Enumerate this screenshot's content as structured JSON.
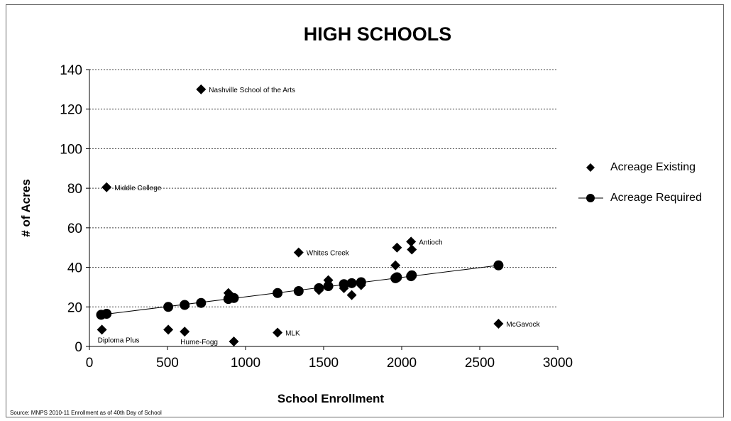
{
  "chart_data": {
    "type": "scatter",
    "title": "HIGH SCHOOLS",
    "xlabel": "School Enrollment",
    "ylabel": "# of Acres",
    "xlim": [
      0,
      3000
    ],
    "ylim": [
      0,
      140
    ],
    "x_ticks": [
      0,
      500,
      1000,
      1500,
      2000,
      2500,
      3000
    ],
    "y_ticks": [
      0,
      20,
      40,
      60,
      80,
      100,
      120,
      140
    ],
    "grid": "horizontal dashed",
    "legend_position": "right",
    "source": "Source: MNPS 2010-11 Enrollment as of 40th Day of School",
    "series": [
      {
        "name": "Acreage Existing",
        "marker": "diamond",
        "color": "#000000",
        "points": [
          {
            "x": 715,
            "y": 130,
            "label": "Nashville School of the Arts"
          },
          {
            "x": 110,
            "y": 80.5,
            "label": "Middle College"
          },
          {
            "x": 1340,
            "y": 47.5,
            "label": "Whites Creek"
          },
          {
            "x": 2060,
            "y": 53,
            "label": "Antioch"
          },
          {
            "x": 1970,
            "y": 50,
            "label": ""
          },
          {
            "x": 2065,
            "y": 49,
            "label": ""
          },
          {
            "x": 1960,
            "y": 41,
            "label": ""
          },
          {
            "x": 1530,
            "y": 33.5,
            "label": ""
          },
          {
            "x": 1740,
            "y": 31,
            "label": ""
          },
          {
            "x": 1630,
            "y": 29.5,
            "label": ""
          },
          {
            "x": 1470,
            "y": 28.5,
            "label": ""
          },
          {
            "x": 1680,
            "y": 26,
            "label": ""
          },
          {
            "x": 890,
            "y": 27,
            "label": ""
          },
          {
            "x": 2620,
            "y": 11.5,
            "label": "McGavock"
          },
          {
            "x": 80,
            "y": 8.5,
            "label": "Diploma Plus"
          },
          {
            "x": 505,
            "y": 8.5,
            "label": ""
          },
          {
            "x": 610,
            "y": 7.5,
            "label": "Hume-Fogg"
          },
          {
            "x": 1205,
            "y": 7,
            "label": "MLK"
          },
          {
            "x": 925,
            "y": 2.5,
            "label": ""
          }
        ]
      },
      {
        "name": "Acreage Required",
        "marker": "circle",
        "color": "#000000",
        "line": true,
        "points": [
          {
            "x": 75,
            "y": 16
          },
          {
            "x": 110,
            "y": 16.5
          },
          {
            "x": 505,
            "y": 20
          },
          {
            "x": 610,
            "y": 21
          },
          {
            "x": 715,
            "y": 22
          },
          {
            "x": 890,
            "y": 24
          },
          {
            "x": 925,
            "y": 24.5
          },
          {
            "x": 1205,
            "y": 27
          },
          {
            "x": 1340,
            "y": 28
          },
          {
            "x": 1470,
            "y": 29.5
          },
          {
            "x": 1530,
            "y": 30.5
          },
          {
            "x": 1630,
            "y": 31.5
          },
          {
            "x": 1680,
            "y": 32
          },
          {
            "x": 1740,
            "y": 32.5
          },
          {
            "x": 1960,
            "y": 34.5
          },
          {
            "x": 1970,
            "y": 35
          },
          {
            "x": 2060,
            "y": 35.5
          },
          {
            "x": 2065,
            "y": 36
          },
          {
            "x": 2620,
            "y": 41
          }
        ]
      }
    ]
  }
}
